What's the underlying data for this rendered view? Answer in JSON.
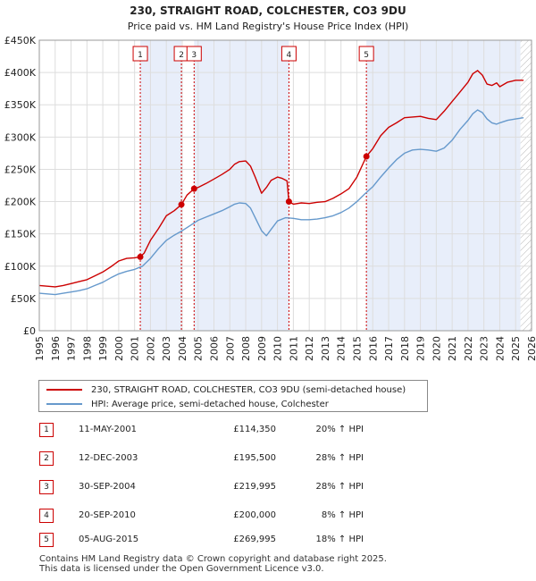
{
  "chart_data": {
    "type": "line",
    "title": "230, STRAIGHT ROAD, COLCHESTER, CO3 9DU",
    "subtitle": "Price paid vs. HM Land Registry's House Price Index (HPI)",
    "xlim": [
      1995,
      2026
    ],
    "ylim": [
      0,
      450000
    ],
    "y_ticks": [
      {
        "value": 0,
        "label": "£0"
      },
      {
        "value": 50000,
        "label": "£50K"
      },
      {
        "value": 100000,
        "label": "£100K"
      },
      {
        "value": 150000,
        "label": "£150K"
      },
      {
        "value": 200000,
        "label": "£200K"
      },
      {
        "value": 250000,
        "label": "£250K"
      },
      {
        "value": 300000,
        "label": "£300K"
      },
      {
        "value": 350000,
        "label": "£350K"
      },
      {
        "value": 400000,
        "label": "£400K"
      },
      {
        "value": 450000,
        "label": "£450K"
      }
    ],
    "x_ticks": [
      "1995",
      "1996",
      "1997",
      "1998",
      "1999",
      "2000",
      "2001",
      "2002",
      "2003",
      "2004",
      "2005",
      "2006",
      "2007",
      "2008",
      "2009",
      "2010",
      "2011",
      "2012",
      "2013",
      "2014",
      "2015",
      "2016",
      "2017",
      "2018",
      "2019",
      "2020",
      "2021",
      "2022",
      "2023",
      "2024",
      "2025",
      "2026"
    ],
    "ownership_shading": [
      [
        2001.36,
        2003.95
      ],
      [
        2004.75,
        2010.72
      ],
      [
        2015.6,
        2025.3
      ]
    ],
    "future_hatch_from": 2025.3,
    "series": [
      {
        "name": "230, STRAIGHT ROAD, COLCHESTER, CO3 9DU (semi-detached house)",
        "color": "#cc0000",
        "x": [
          1995,
          1995.5,
          1996,
          1996.5,
          1997,
          1997.5,
          1998,
          1998.5,
          1999,
          1999.5,
          2000,
          2000.5,
          2001,
          2001.36,
          2001.6,
          2002,
          2002.5,
          2003,
          2003.5,
          2003.95,
          2004.3,
          2004.75,
          2005,
          2005.5,
          2006,
          2006.5,
          2007,
          2007.3,
          2007.6,
          2008,
          2008.3,
          2008.6,
          2009,
          2009.3,
          2009.6,
          2010,
          2010.3,
          2010.6,
          2010.72,
          2011,
          2011.5,
          2012,
          2012.5,
          2013,
          2013.5,
          2014,
          2014.5,
          2015,
          2015.6,
          2016,
          2016.5,
          2017,
          2017.5,
          2018,
          2018.5,
          2019,
          2019.5,
          2020,
          2020.5,
          2021,
          2021.5,
          2022,
          2022.3,
          2022.6,
          2022.9,
          2023.2,
          2023.5,
          2023.8,
          2024,
          2024.5,
          2025,
          2025.5
        ],
        "values": [
          70000,
          69000,
          68000,
          70000,
          73000,
          76000,
          79000,
          85000,
          91000,
          99000,
          108000,
          112000,
          113000,
          114350,
          120000,
          140000,
          158000,
          178000,
          186000,
          195500,
          210000,
          219995,
          222000,
          228000,
          235000,
          242000,
          250000,
          258000,
          262000,
          263000,
          255000,
          238000,
          213000,
          222000,
          233000,
          238000,
          236000,
          232000,
          200000,
          196000,
          198000,
          197000,
          199000,
          200000,
          205000,
          212000,
          220000,
          238000,
          269995,
          282000,
          302000,
          315000,
          322000,
          330000,
          331000,
          332000,
          329000,
          327000,
          340000,
          355000,
          370000,
          385000,
          398000,
          403000,
          396000,
          382000,
          380000,
          384000,
          378000,
          385000,
          388000,
          388000
        ]
      },
      {
        "name": "HPI: Average price, semi-detached house, Colchester",
        "color": "#6699cc",
        "x": [
          1995,
          1995.5,
          1996,
          1996.5,
          1997,
          1997.5,
          1998,
          1998.5,
          1999,
          1999.5,
          2000,
          2000.5,
          2001,
          2001.5,
          2002,
          2002.5,
          2003,
          2003.5,
          2004,
          2004.5,
          2005,
          2005.5,
          2006,
          2006.5,
          2007,
          2007.3,
          2007.6,
          2008,
          2008.3,
          2008.6,
          2009,
          2009.3,
          2009.6,
          2010,
          2010.5,
          2011,
          2011.5,
          2012,
          2012.5,
          2013,
          2013.5,
          2014,
          2014.5,
          2015,
          2015.5,
          2016,
          2016.5,
          2017,
          2017.5,
          2018,
          2018.5,
          2019,
          2019.5,
          2020,
          2020.5,
          2021,
          2021.5,
          2022,
          2022.3,
          2022.6,
          2022.9,
          2023.2,
          2023.5,
          2023.8,
          2024,
          2024.5,
          2025,
          2025.5
        ],
        "values": [
          58000,
          57000,
          56000,
          58000,
          60000,
          62000,
          65000,
          70000,
          75000,
          82000,
          88000,
          92000,
          95000,
          100000,
          112000,
          127000,
          140000,
          148000,
          155000,
          163000,
          171000,
          176000,
          181000,
          186000,
          192000,
          196000,
          198000,
          197000,
          190000,
          175000,
          155000,
          147000,
          157000,
          170000,
          175000,
          174000,
          172000,
          172000,
          173000,
          175000,
          178000,
          183000,
          190000,
          200000,
          212000,
          223000,
          238000,
          252000,
          265000,
          275000,
          280000,
          281000,
          280000,
          278000,
          283000,
          295000,
          312000,
          326000,
          336000,
          342000,
          338000,
          328000,
          322000,
          320000,
          322000,
          326000,
          328000,
          330000
        ]
      }
    ],
    "sales": [
      {
        "num": "1",
        "year": 2001.36,
        "value": 114350
      },
      {
        "num": "2",
        "year": 2003.95,
        "value": 195500
      },
      {
        "num": "3",
        "year": 2004.75,
        "value": 219995
      },
      {
        "num": "4",
        "year": 2010.72,
        "value": 200000
      },
      {
        "num": "5",
        "year": 2015.6,
        "value": 269995
      }
    ]
  },
  "legend": {
    "property_label": "230, STRAIGHT ROAD, COLCHESTER, CO3 9DU (semi-detached house)",
    "hpi_label": "HPI: Average price, semi-detached house, Colchester",
    "property_color": "#cc0000",
    "hpi_color": "#6699cc"
  },
  "sales_table": [
    {
      "num": "1",
      "date": "11-MAY-2001",
      "price": "£114,350",
      "hpi": "20% ↑ HPI"
    },
    {
      "num": "2",
      "date": "12-DEC-2003",
      "price": "£195,500",
      "hpi": "28% ↑ HPI"
    },
    {
      "num": "3",
      "date": "30-SEP-2004",
      "price": "£219,995",
      "hpi": "28% ↑ HPI"
    },
    {
      "num": "4",
      "date": "20-SEP-2010",
      "price": "£200,000",
      "hpi": "8% ↑ HPI"
    },
    {
      "num": "5",
      "date": "05-AUG-2015",
      "price": "£269,995",
      "hpi": "18% ↑ HPI"
    }
  ],
  "footer": {
    "line1": "Contains HM Land Registry data © Crown copyright and database right 2025.",
    "line2": "This data is licensed under the Open Government Licence v3.0."
  }
}
